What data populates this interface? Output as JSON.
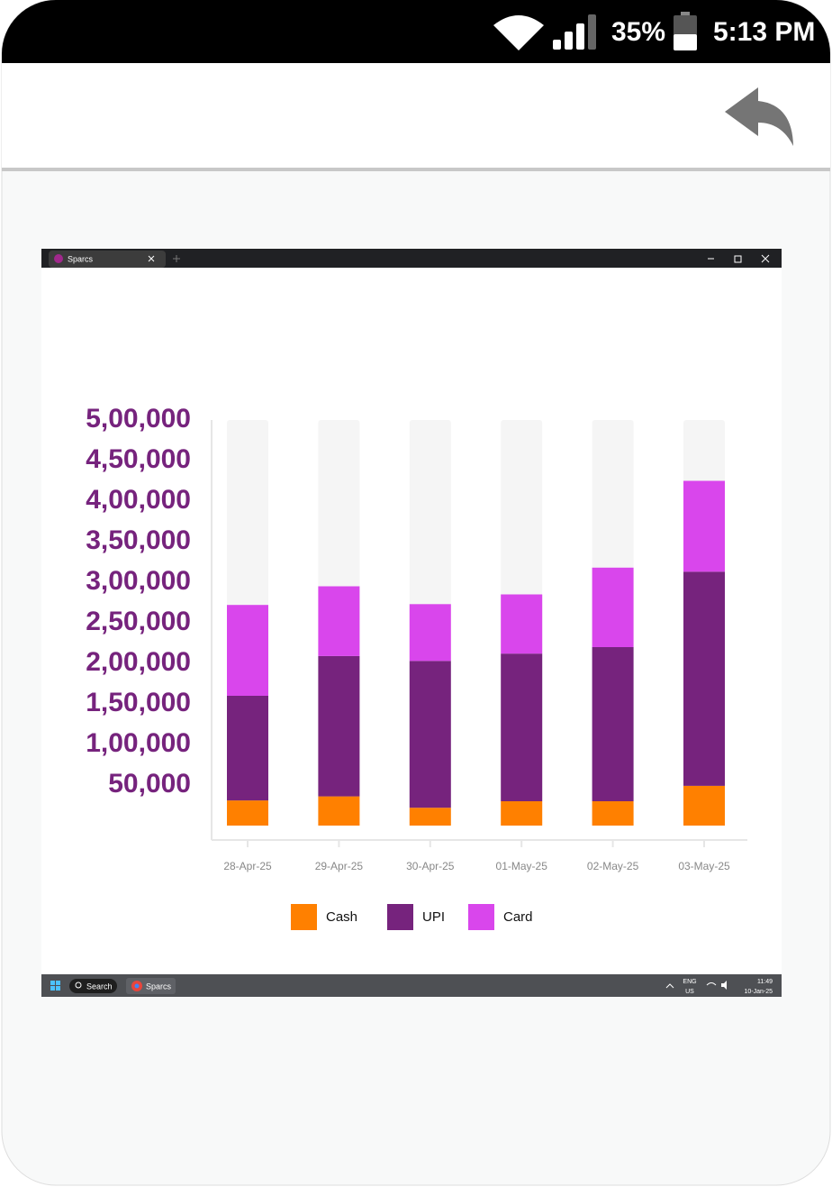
{
  "status_bar": {
    "battery": "35%",
    "time": "5:13 PM"
  },
  "window": {
    "tab_title": "Sparcs"
  },
  "taskbar": {
    "search": "Search",
    "app": "Sparcs",
    "lang": "ENG",
    "region": "US",
    "clock_time": "11:49",
    "clock_date": "10-Jan-25"
  },
  "chart_data": {
    "type": "stacked_bar",
    "categories": [
      "28-Apr-25",
      "29-Apr-25",
      "30-Apr-25",
      "01-May-25",
      "02-May-25",
      "03-May-25"
    ],
    "series": [
      {
        "name": "Cash",
        "color": "#ff8000",
        "values": [
          31000,
          36000,
          22000,
          30000,
          30000,
          49000
        ]
      },
      {
        "name": "UPI",
        "color": "#76237d",
        "values": [
          129000,
          173000,
          181000,
          182000,
          190000,
          264000
        ]
      },
      {
        "name": "Card",
        "color": "#d946ec",
        "values": [
          112000,
          86000,
          70000,
          73000,
          98000,
          112000
        ]
      }
    ],
    "ylim": [
      0,
      500000
    ],
    "yticks": [
      {
        "value": 50000,
        "label": "50,000"
      },
      {
        "value": 100000,
        "label": "1,00,000"
      },
      {
        "value": 150000,
        "label": "1,50,000"
      },
      {
        "value": 200000,
        "label": "2,00,000"
      },
      {
        "value": 250000,
        "label": "2,50,000"
      },
      {
        "value": 300000,
        "label": "3,00,000"
      },
      {
        "value": 350000,
        "label": "3,50,000"
      },
      {
        "value": 400000,
        "label": "4,00,000"
      },
      {
        "value": 450000,
        "label": "4,50,000"
      },
      {
        "value": 500000,
        "label": "5,00,000"
      }
    ],
    "legend": "bottom"
  }
}
